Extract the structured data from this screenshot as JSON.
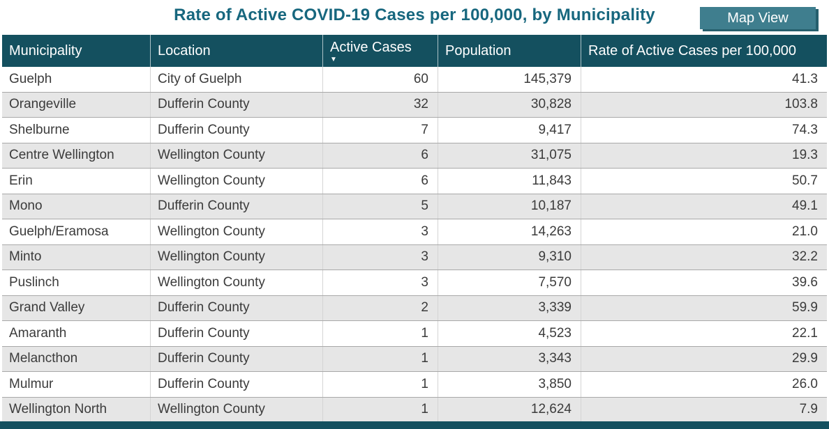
{
  "title": "Rate of Active COVID-19 Cases per 100,000, by Municipality",
  "map_view_button": {
    "label": "Map View"
  },
  "colors": {
    "header_bg": "#14505f",
    "title_text": "#17677e",
    "button_bg": "#3f7e8e",
    "button_shadow": "#265f6d",
    "row_alt_bg": "#e6e6e6",
    "body_text": "#3b3b3b"
  },
  "table": {
    "sort_icon": "▼",
    "sorted_column": "Active Cases",
    "sort_direction": "descending",
    "columns": [
      {
        "label": "Municipality",
        "align": "left"
      },
      {
        "label": "Location",
        "align": "left"
      },
      {
        "label": "Active Cases",
        "align": "right"
      },
      {
        "label": "Population",
        "align": "right"
      },
      {
        "label": "Rate of Active Cases per 100,000",
        "align": "right"
      }
    ],
    "rows": [
      [
        "Guelph",
        "City of Guelph",
        "60",
        "145,379",
        "41.3"
      ],
      [
        "Orangeville",
        "Dufferin County",
        "32",
        "30,828",
        "103.8"
      ],
      [
        "Shelburne",
        "Dufferin County",
        "7",
        "9,417",
        "74.3"
      ],
      [
        "Centre Wellington",
        "Wellington County",
        "6",
        "31,075",
        "19.3"
      ],
      [
        "Erin",
        "Wellington County",
        "6",
        "11,843",
        "50.7"
      ],
      [
        "Mono",
        "Dufferin County",
        "5",
        "10,187",
        "49.1"
      ],
      [
        "Guelph/Eramosa",
        "Wellington County",
        "3",
        "14,263",
        "21.0"
      ],
      [
        "Minto",
        "Wellington County",
        "3",
        "9,310",
        "32.2"
      ],
      [
        "Puslinch",
        "Wellington County",
        "3",
        "7,570",
        "39.6"
      ],
      [
        "Grand Valley",
        "Dufferin County",
        "2",
        "3,339",
        "59.9"
      ],
      [
        "Amaranth",
        "Dufferin County",
        "1",
        "4,523",
        "22.1"
      ],
      [
        "Melancthon",
        "Dufferin County",
        "1",
        "3,343",
        "29.9"
      ],
      [
        "Mulmur",
        "Dufferin County",
        "1",
        "3,850",
        "26.0"
      ],
      [
        "Wellington North",
        "Wellington County",
        "1",
        "12,624",
        "7.9"
      ]
    ]
  }
}
